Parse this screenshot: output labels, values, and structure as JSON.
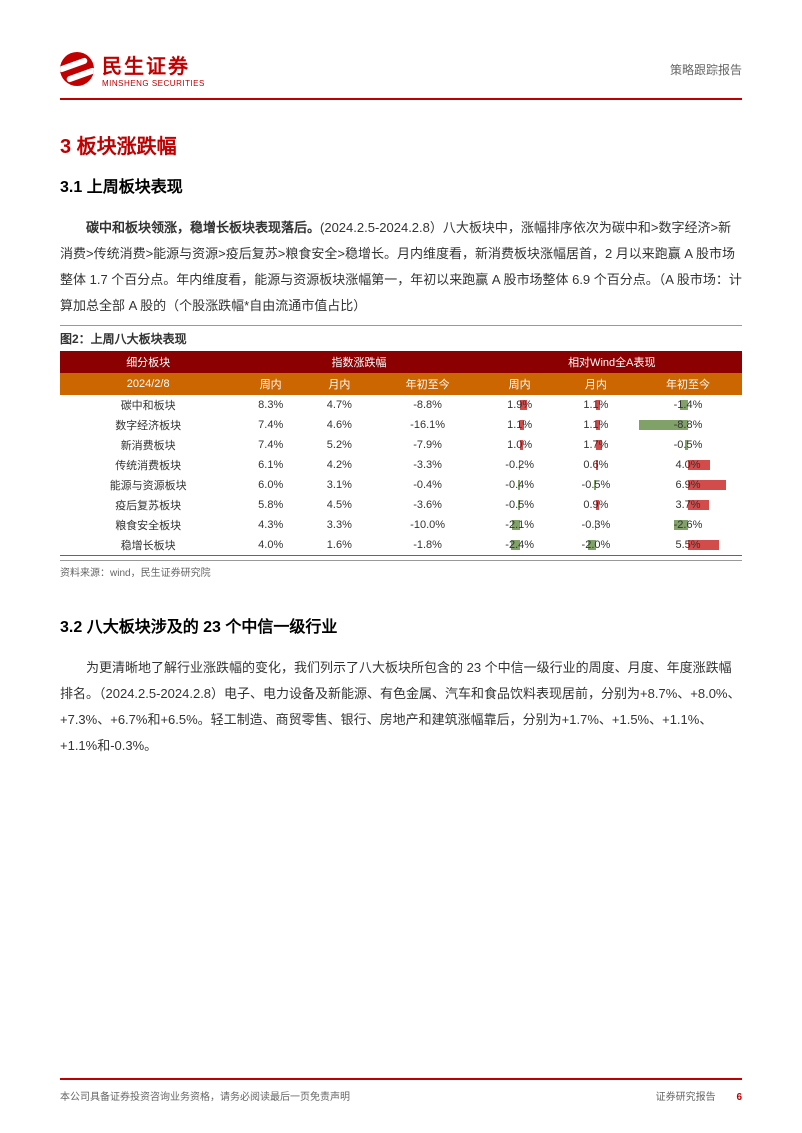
{
  "header": {
    "logo_cn": "民生证券",
    "logo_en": "MINSHENG SECURITIES",
    "doc_type": "策略跟踪报告"
  },
  "section": {
    "num_title": "3 板块涨跌幅",
    "sub1_title": "3.1 上周板块表现",
    "sub2_title": "3.2 八大板块涉及的 23 个中信一级行业"
  },
  "para1": {
    "bold": "碳中和板块领涨，稳增长板块表现落后。",
    "rest": "(2024.2.5-2024.2.8）八大板块中，涨幅排序依次为碳中和>数字经济>新消费>传统消费>能源与资源>疫后复苏>粮食安全>稳增长。月内维度看，新消费板块涨幅居首，2 月以来跑赢 A 股市场整体 1.7 个百分点。年内维度看，能源与资源板块涨幅第一，年初以来跑赢 A 股市场整体 6.9 个百分点。（A 股市场：计算加总全部 A 股的（个股涨跌幅*自由流通市值占比）"
  },
  "figure2": {
    "caption": "图2：上周八大板块表现",
    "source": "资料来源：wind，民生证券研究院",
    "header_colors": {
      "row1": "#8b0000",
      "row2": "#cc6600"
    },
    "bar_colors": {
      "positive": "#c00000",
      "negative": "#4a7a2a"
    },
    "columns": {
      "group_left": "细分板块",
      "group_mid": "指数涨跌幅",
      "group_right": "相对Wind全A表现",
      "date": "2024/2/8",
      "week": "周内",
      "month": "月内",
      "ytd": "年初至今",
      "rel_week": "周内",
      "rel_month": "月内",
      "rel_ytd": "年初至今"
    },
    "rows": [
      {
        "name": "碳中和板块",
        "week": "8.3%",
        "month": "4.7%",
        "ytd": "-8.8%",
        "rw": {
          "txt": "1.9%",
          "v": 1.9
        },
        "rm": {
          "txt": "1.1%",
          "v": 1.1
        },
        "ry": {
          "txt": "-1.4%",
          "v": -1.4
        }
      },
      {
        "name": "数字经济板块",
        "week": "7.4%",
        "month": "4.6%",
        "ytd": "-16.1%",
        "rw": {
          "txt": "1.1%",
          "v": 1.1
        },
        "rm": {
          "txt": "1.1%",
          "v": 1.1
        },
        "ry": {
          "txt": "-8.8%",
          "v": -8.8
        }
      },
      {
        "name": "新消费板块",
        "week": "7.4%",
        "month": "5.2%",
        "ytd": "-7.9%",
        "rw": {
          "txt": "1.0%",
          "v": 1.0
        },
        "rm": {
          "txt": "1.7%",
          "v": 1.7
        },
        "ry": {
          "txt": "-0.5%",
          "v": -0.5
        }
      },
      {
        "name": "传统消费板块",
        "week": "6.1%",
        "month": "4.2%",
        "ytd": "-3.3%",
        "rw": {
          "txt": "-0.2%",
          "v": -0.2
        },
        "rm": {
          "txt": "0.6%",
          "v": 0.6
        },
        "ry": {
          "txt": "4.0%",
          "v": 4.0
        }
      },
      {
        "name": "能源与资源板块",
        "week": "6.0%",
        "month": "3.1%",
        "ytd": "-0.4%",
        "rw": {
          "txt": "-0.4%",
          "v": -0.4
        },
        "rm": {
          "txt": "-0.5%",
          "v": -0.5
        },
        "ry": {
          "txt": "6.9%",
          "v": 6.9
        }
      },
      {
        "name": "疫后复苏板块",
        "week": "5.8%",
        "month": "4.5%",
        "ytd": "-3.6%",
        "rw": {
          "txt": "-0.5%",
          "v": -0.5
        },
        "rm": {
          "txt": "0.9%",
          "v": 0.9
        },
        "ry": {
          "txt": "3.7%",
          "v": 3.7
        }
      },
      {
        "name": "粮食安全板块",
        "week": "4.3%",
        "month": "3.3%",
        "ytd": "-10.0%",
        "rw": {
          "txt": "-2.1%",
          "v": -2.1
        },
        "rm": {
          "txt": "-0.3%",
          "v": -0.3
        },
        "ry": {
          "txt": "-2.6%",
          "v": -2.6
        }
      },
      {
        "name": "稳增长板块",
        "week": "4.0%",
        "month": "1.6%",
        "ytd": "-1.8%",
        "rw": {
          "txt": "-2.4%",
          "v": -2.4
        },
        "rm": {
          "txt": "-2.0%",
          "v": -2.0
        },
        "ry": {
          "txt": "5.5%",
          "v": 5.5
        }
      }
    ],
    "bar_scale": {
      "max_abs": 9.0,
      "half_width_pct": 50
    }
  },
  "para2": "为更清晰地了解行业涨跌幅的变化，我们列示了八大板块所包含的 23 个中信一级行业的周度、月度、年度涨跌幅排名。（2024.2.5-2024.2.8）电子、电力设备及新能源、有色金属、汽车和食品饮料表现居前，分别为+8.7%、+8.0%、+7.3%、+6.7%和+6.5%。轻工制造、商贸零售、银行、房地产和建筑涨幅靠后，分别为+1.7%、+1.5%、+1.1%、+1.1%和-0.3%。",
  "footer": {
    "left": "本公司具备证券投资咨询业务资格，请务必阅读最后一页免责声明",
    "right_label": "证券研究报告",
    "page_num": "6"
  }
}
